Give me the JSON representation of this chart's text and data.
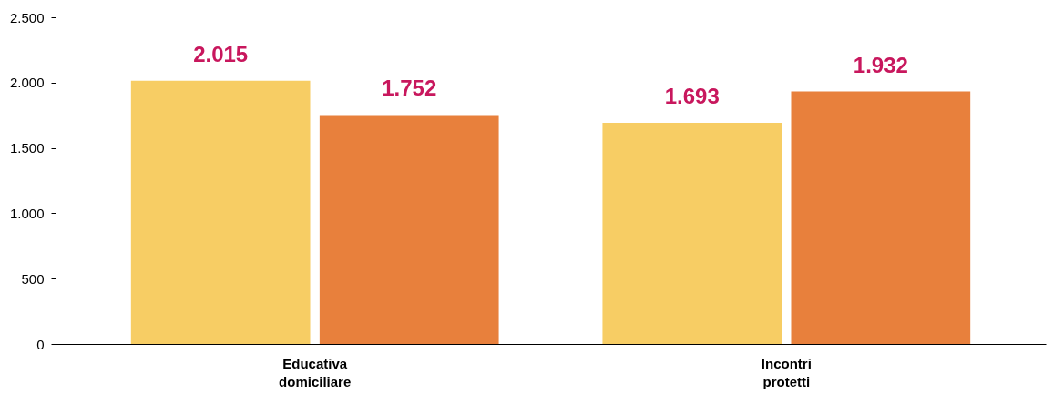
{
  "chart_data": {
    "type": "bar",
    "categories": [
      "Educativa domiciliare",
      "Incontri protetti"
    ],
    "series": [
      {
        "color": "#f7cd64",
        "values": [
          2015,
          1693
        ],
        "value_labels": [
          "2.015",
          "1.693"
        ]
      },
      {
        "color": "#e8803c",
        "values": [
          1752,
          1932
        ],
        "value_labels": [
          "1.752",
          "1.932"
        ]
      }
    ],
    "ylim": [
      0,
      2500
    ],
    "yticks": [
      {
        "value": 0,
        "label": "0"
      },
      {
        "value": 500,
        "label": "500"
      },
      {
        "value": 1000,
        "label": "1.000"
      },
      {
        "value": 1500,
        "label": "1.500"
      },
      {
        "value": 2000,
        "label": "2.000"
      },
      {
        "value": 2500,
        "label": "2.500"
      }
    ],
    "grid": false,
    "legend": false
  }
}
